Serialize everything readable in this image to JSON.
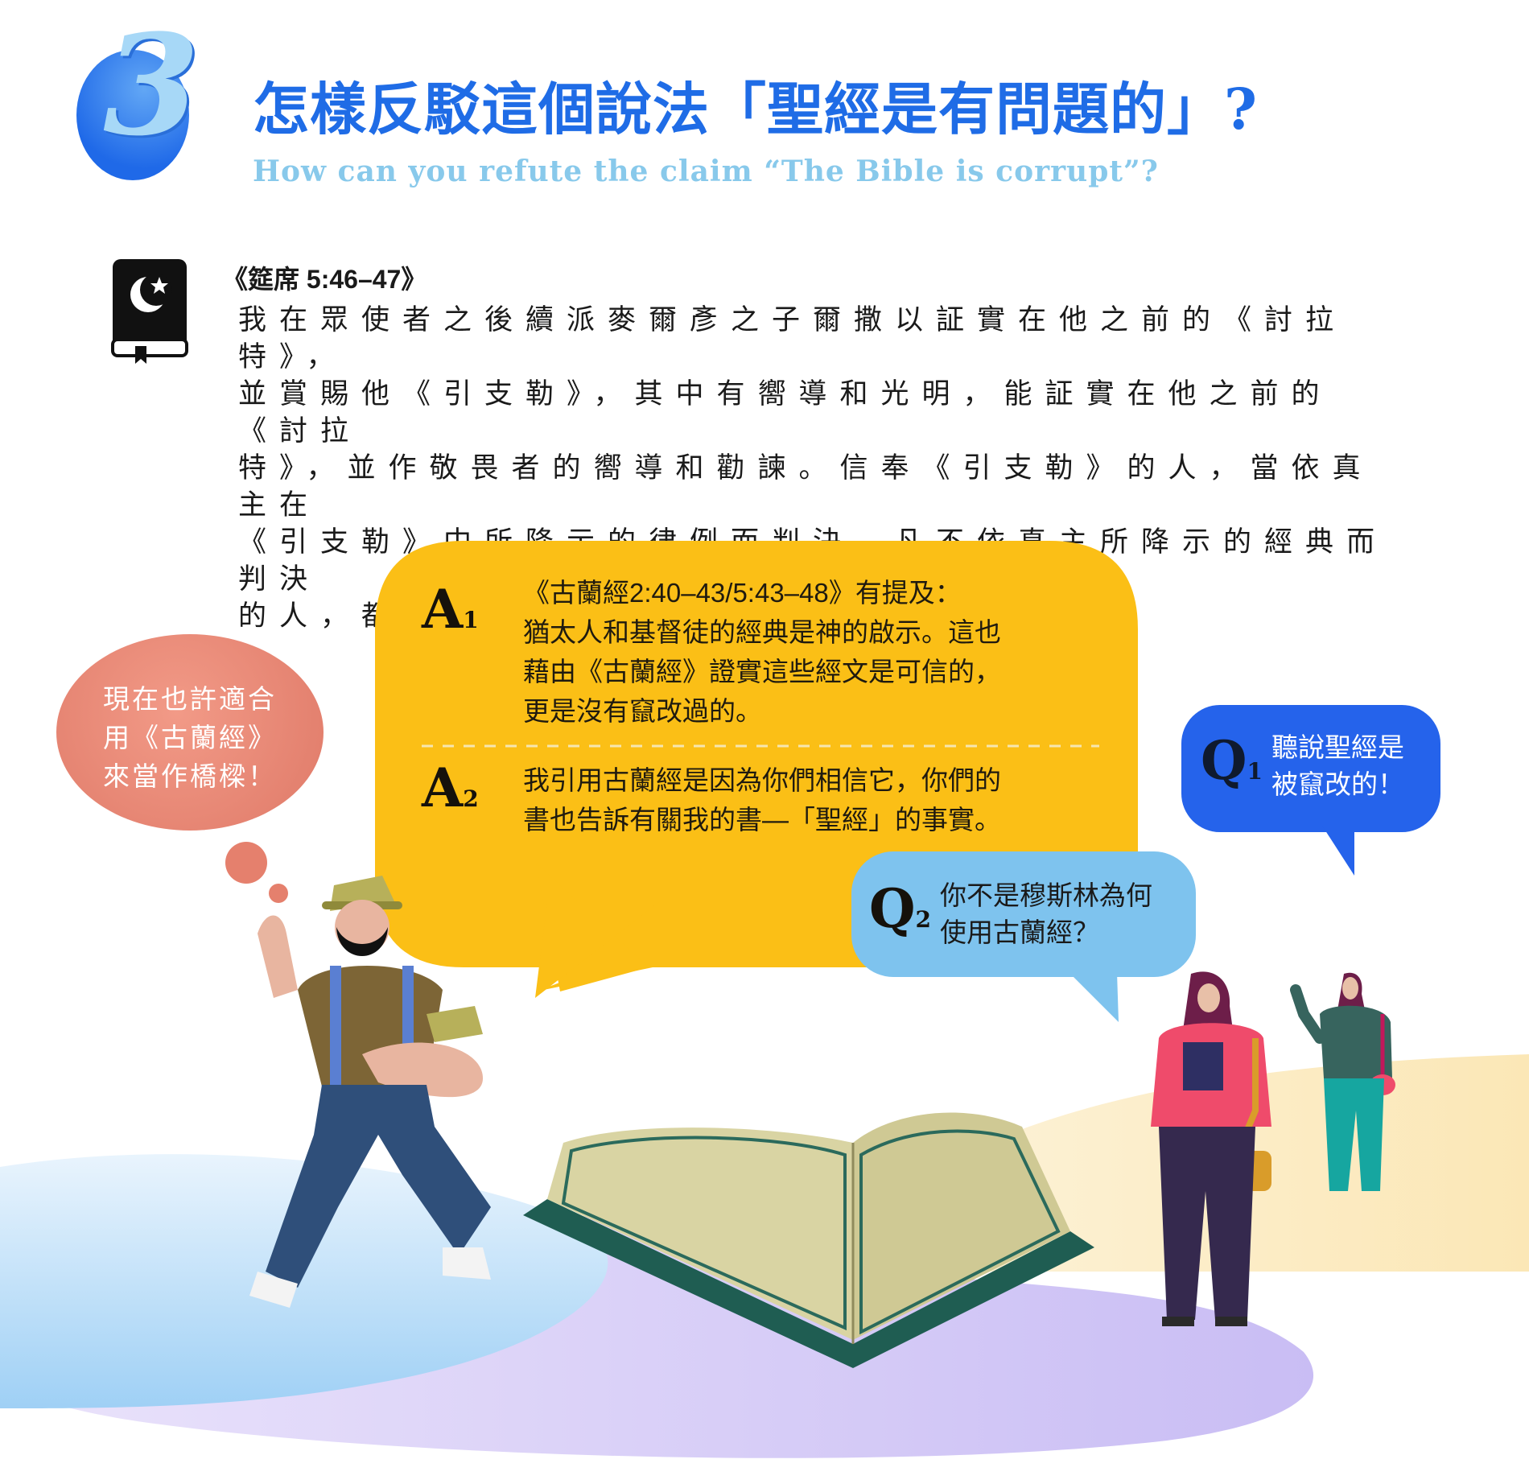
{
  "header": {
    "section_number": "3",
    "title_zh": "怎樣反駁這個說法「聖經是有問題的」?",
    "title_en": "How can you refute the claim “The Bible is corrupt”?"
  },
  "verse": {
    "icon": "quran-book-icon",
    "reference": "《筵席 5:46–47》",
    "lines": [
      "我在眾使者之後續派麥爾彥之子爾撒以証實在他之前的《討拉特》，",
      "並賞賜他《引支勒》，其中有嚮導和光明，能証實在他之前的《討拉",
      "特》，並作敬畏者的嚮導和勸諫。信奉《引支勒》的人，當依真主在",
      "《引支勒》中所降示的律例而判決。凡不依真主所降示的經典而判決",
      "的人，都是犯罪的。"
    ]
  },
  "thought_bubble": {
    "lines": [
      "現在也許適合",
      "用《古蘭經》",
      "來當作橋樑！"
    ]
  },
  "answers": [
    {
      "label": "A",
      "index": "1",
      "lines": [
        "《古蘭經2:40–43/5:43–48》有提及：",
        "猶太人和基督徒的經典是神的啟示。這也",
        "藉由《古蘭經》證實這些經文是可信的，",
        "更是沒有竄改過的。"
      ]
    },
    {
      "label": "A",
      "index": "2",
      "lines": [
        "我引用古蘭經是因為你們相信它，你們的",
        "書也告訴有關我的書—「聖經」的事實。"
      ]
    }
  ],
  "questions": [
    {
      "label": "Q",
      "index": "1",
      "lines": [
        "聽說聖經是",
        "被竄改的！"
      ]
    },
    {
      "label": "Q",
      "index": "2",
      "lines": [
        "你不是穆斯林為何",
        "使用古蘭經？"
      ]
    }
  ],
  "colors": {
    "title_blue": "#1f6ce6",
    "subtitle_blue": "#88c9eb",
    "answer_bubble": "#fbbf16",
    "thought_bubble": "#e3806e",
    "q1_bubble": "#2563eb",
    "q2_bubble": "#7ec3ee"
  }
}
